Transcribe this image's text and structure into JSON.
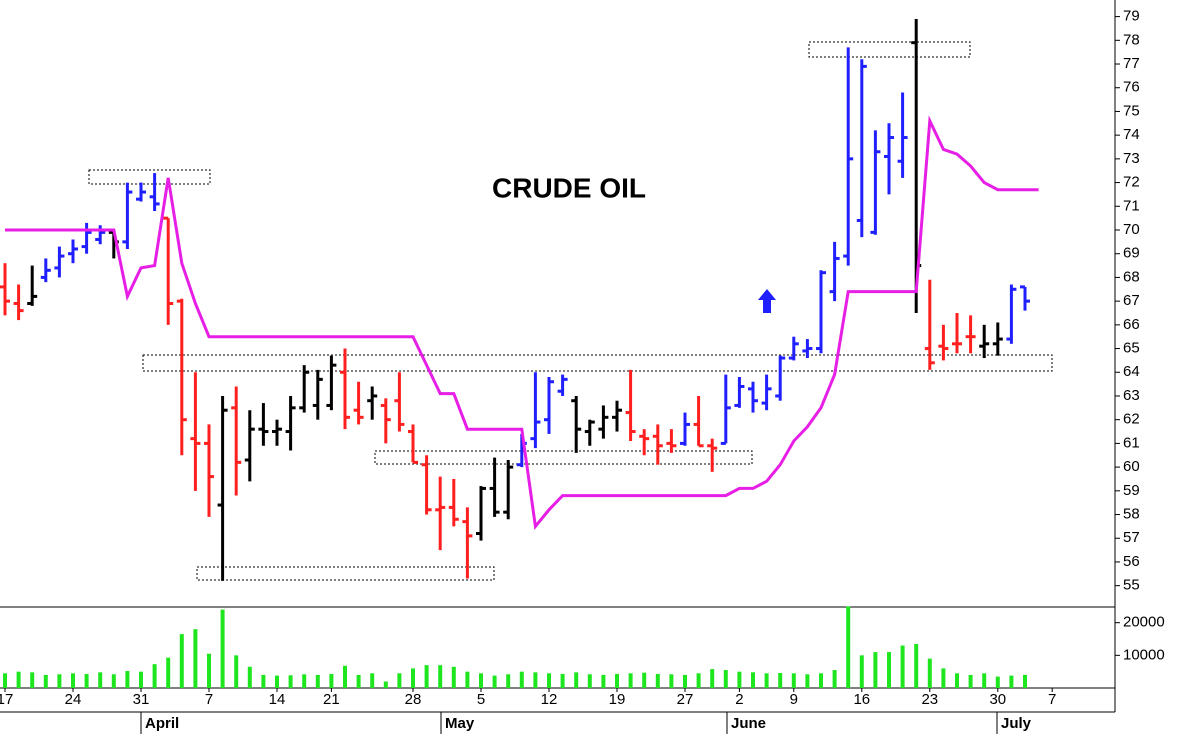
{
  "chart_data": {
    "type": "ohlc",
    "title": "CRUDE OIL",
    "categories": [
      "17",
      null,
      null,
      null,
      null,
      "24",
      null,
      null,
      null,
      null,
      "31",
      null,
      null,
      null,
      null,
      "7",
      null,
      null,
      null,
      null,
      "14",
      null,
      null,
      null,
      "21",
      null,
      null,
      null,
      null,
      null,
      "28",
      null,
      null,
      null,
      null,
      "5",
      null,
      null,
      null,
      null,
      "12",
      null,
      null,
      null,
      null,
      "19",
      null,
      null,
      null,
      null,
      "27",
      null,
      null,
      null,
      "2",
      null,
      null,
      null,
      "9",
      null,
      null,
      null,
      null,
      "16",
      null,
      null,
      null,
      null,
      "23",
      null,
      null,
      null,
      null,
      "30",
      null,
      null,
      null,
      "7",
      null,
      null,
      null,
      null
    ],
    "months": [
      "April",
      "May",
      "June",
      "July"
    ],
    "open": [
      67.6,
      66.9,
      66.9,
      68.0,
      68.4,
      69.0,
      69.3,
      69.6,
      69.9,
      69.5,
      71.3,
      71.4,
      70.5,
      67.0,
      61.2,
      61.0,
      58.4,
      62.5,
      60.3,
      61.6,
      61.5,
      61.5,
      62.5,
      62.6,
      62.6,
      64.0,
      62.4,
      62.8,
      62.6,
      62.8,
      61.5,
      60.1,
      58.2,
      58.3,
      57.7,
      57.2,
      59.1,
      58.1,
      60.1,
      61.2,
      62.0,
      63.2,
      62.8,
      61.5,
      61.6,
      62.1,
      62.3,
      61.3,
      61.3,
      61.0,
      61.0,
      61.8,
      60.9,
      61.0,
      62.6,
      63.3,
      62.7,
      63.0,
      64.6,
      64.9,
      65.0,
      67.4,
      68.9,
      70.4,
      69.9,
      73.1,
      72.9,
      77.9,
      65.0,
      65.1,
      65.2,
      65.5,
      65.1,
      65.2,
      65.4,
      67.6,
      null,
      null,
      null,
      null,
      null,
      null
    ],
    "high": [
      68.6,
      67.7,
      68.5,
      68.8,
      69.3,
      69.6,
      70.3,
      70.2,
      70.0,
      72.0,
      72.0,
      72.4,
      70.5,
      67.1,
      64.0,
      61.8,
      63.0,
      63.4,
      62.4,
      62.7,
      62.0,
      63.0,
      64.3,
      64.1,
      64.7,
      65.0,
      63.6,
      63.4,
      62.9,
      64.0,
      61.8,
      60.5,
      59.6,
      59.5,
      58.3,
      59.2,
      60.4,
      60.3,
      61.4,
      64.0,
      63.8,
      63.9,
      63.0,
      62.0,
      62.6,
      62.8,
      64.1,
      61.6,
      61.8,
      61.6,
      62.3,
      63.0,
      61.2,
      63.9,
      63.8,
      63.6,
      63.9,
      64.7,
      65.5,
      65.4,
      68.3,
      69.5,
      77.7,
      77.2,
      74.2,
      74.5,
      75.8,
      78.9,
      67.9,
      66.0,
      66.5,
      66.4,
      66.0,
      66.1,
      67.7,
      67.6,
      null,
      null,
      null,
      null,
      null,
      null
    ],
    "low": [
      66.4,
      66.2,
      66.8,
      67.8,
      68.0,
      68.6,
      69.0,
      69.4,
      68.8,
      69.2,
      71.2,
      70.8,
      66.0,
      60.5,
      59.0,
      57.9,
      55.2,
      58.8,
      59.4,
      60.9,
      60.9,
      60.7,
      62.3,
      62.0,
      62.4,
      61.6,
      61.8,
      62.0,
      61.0,
      61.5,
      60.2,
      58.0,
      56.5,
      57.5,
      55.3,
      56.9,
      57.9,
      57.8,
      60.0,
      60.8,
      61.4,
      63.0,
      60.6,
      60.9,
      61.2,
      61.5,
      61.1,
      60.5,
      60.1,
      60.6,
      60.9,
      60.9,
      59.8,
      61.0,
      62.5,
      62.3,
      62.4,
      62.8,
      64.5,
      64.6,
      64.8,
      67.0,
      68.5,
      69.7,
      69.8,
      71.5,
      72.2,
      66.5,
      64.1,
      64.5,
      64.8,
      64.8,
      64.6,
      64.7,
      65.2,
      66.6,
      null,
      null,
      null,
      null,
      null,
      null
    ],
    "close": [
      67.0,
      66.6,
      67.2,
      68.3,
      68.9,
      69.2,
      69.9,
      69.9,
      69.5,
      71.6,
      71.6,
      71.1,
      66.9,
      62.0,
      61.0,
      59.6,
      62.4,
      60.2,
      61.6,
      61.5,
      61.6,
      62.5,
      64.0,
      63.7,
      64.3,
      62.1,
      62.1,
      63.0,
      62.0,
      61.8,
      60.2,
      58.2,
      58.3,
      57.8,
      57.1,
      59.1,
      58.1,
      60.0,
      61.0,
      61.9,
      63.6,
      63.7,
      61.6,
      61.9,
      62.1,
      62.4,
      61.5,
      61.2,
      60.9,
      60.9,
      61.8,
      60.9,
      60.8,
      62.5,
      63.4,
      62.8,
      63.3,
      64.6,
      65.2,
      65.0,
      68.2,
      68.8,
      73.0,
      76.9,
      73.3,
      73.9,
      73.9,
      68.5,
      64.4,
      65.0,
      65.2,
      65.5,
      65.2,
      65.4,
      67.5,
      67.0,
      null,
      null,
      null,
      null,
      null,
      null
    ],
    "bar_colors": [
      "#ff1f1f",
      "#ff1f1f",
      "#000000",
      "#1f1fff",
      "#1f1fff",
      "#1f1fff",
      "#1f1fff",
      "#1f1fff",
      "#000000",
      "#1f1fff",
      "#1f1fff",
      "#1f1fff",
      "#ff1f1f",
      "#ff1f1f",
      "#ff1f1f",
      "#ff1f1f",
      "#000000",
      "#ff1f1f",
      "#000000",
      "#000000",
      "#000000",
      "#000000",
      "#000000",
      "#000000",
      "#000000",
      "#ff1f1f",
      "#ff1f1f",
      "#000000",
      "#ff1f1f",
      "#ff1f1f",
      "#ff1f1f",
      "#ff1f1f",
      "#ff1f1f",
      "#ff1f1f",
      "#ff1f1f",
      "#000000",
      "#000000",
      "#000000",
      "#1f1fff",
      "#1f1fff",
      "#1f1fff",
      "#1f1fff",
      "#000000",
      "#000000",
      "#000000",
      "#000000",
      "#ff1f1f",
      "#ff1f1f",
      "#ff1f1f",
      "#ff1f1f",
      "#1f1fff",
      "#ff1f1f",
      "#ff1f1f",
      "#1f1fff",
      "#1f1fff",
      "#1f1fff",
      "#1f1fff",
      "#1f1fff",
      "#1f1fff",
      "#1f1fff",
      "#1f1fff",
      "#1f1fff",
      "#1f1fff",
      "#1f1fff",
      "#1f1fff",
      "#1f1fff",
      "#1f1fff",
      "#000000",
      "#ff1f1f",
      "#ff1f1f",
      "#ff1f1f",
      "#ff1f1f",
      "#000000",
      "#000000",
      "#1f1fff",
      "#1f1fff",
      null,
      null,
      null,
      null,
      null,
      null
    ],
    "line": {
      "color": "#e61ee6",
      "values": [
        70.0,
        70.0,
        70.0,
        70.0,
        70.0,
        70.0,
        70.0,
        70.0,
        70.0,
        67.2,
        68.4,
        68.5,
        72.2,
        68.6,
        66.9,
        65.5,
        65.5,
        65.5,
        65.5,
        65.5,
        65.5,
        65.5,
        65.5,
        65.5,
        65.5,
        65.5,
        65.5,
        65.5,
        65.5,
        65.5,
        65.5,
        64.3,
        63.1,
        63.1,
        61.6,
        61.6,
        61.6,
        61.6,
        61.6,
        57.5,
        58.2,
        58.8,
        58.8,
        58.8,
        58.8,
        58.8,
        58.8,
        58.8,
        58.8,
        58.8,
        58.8,
        58.8,
        58.8,
        58.8,
        59.1,
        59.1,
        59.4,
        60.1,
        61.1,
        61.7,
        62.5,
        63.9,
        67.4,
        67.4,
        67.4,
        67.4,
        67.4,
        67.4,
        74.6,
        73.4,
        73.2,
        72.7,
        72.0,
        71.7,
        71.7,
        71.7,
        71.7,
        null,
        null,
        null,
        null,
        null
      ]
    },
    "volume": {
      "color": "#1ee61e",
      "axis": "y2",
      "values": [
        4500,
        5000,
        4800,
        4000,
        4200,
        4500,
        4300,
        4800,
        4200,
        5200,
        5000,
        7300,
        9300,
        16500,
        18000,
        10500,
        24000,
        10000,
        6500,
        4000,
        3800,
        3900,
        4200,
        4000,
        4300,
        6800,
        4000,
        4500,
        2000,
        4500,
        6000,
        7000,
        7000,
        6500,
        5000,
        4500,
        3800,
        4200,
        5000,
        4800,
        4500,
        4300,
        4800,
        4200,
        4000,
        4300,
        4500,
        4700,
        4300,
        4200,
        4000,
        4500,
        5800,
        5500,
        5000,
        4800,
        4500,
        4600,
        4500,
        4200,
        4500,
        5500,
        25000,
        10000,
        11000,
        11000,
        13000,
        13500,
        9000,
        6000,
        4500,
        4000,
        4500,
        3500,
        3800,
        4000,
        null,
        null,
        null,
        null,
        null,
        null
      ]
    },
    "ylim": [
      54.1,
      79.7
    ],
    "yticks": [
      55,
      56,
      57,
      58,
      59,
      60,
      61,
      62,
      63,
      64,
      65,
      66,
      67,
      68,
      69,
      70,
      71,
      72,
      73,
      74,
      75,
      76,
      77,
      78,
      79
    ],
    "y2lim": [
      0,
      24800
    ],
    "y2ticks": [
      10000,
      20000
    ]
  }
}
